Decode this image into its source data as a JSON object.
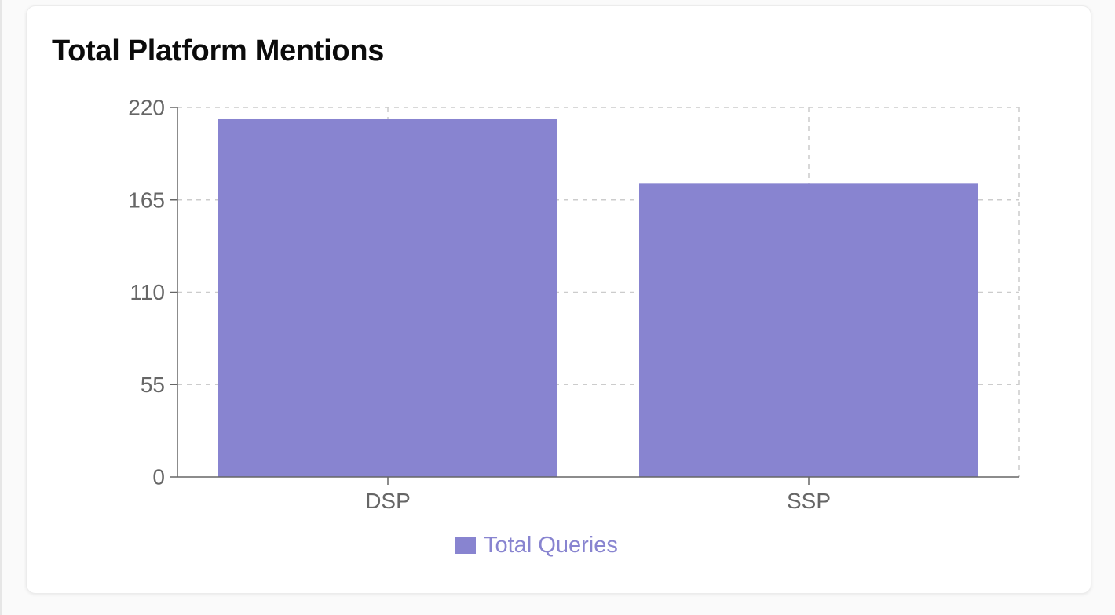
{
  "card": {
    "title": "Total Platform Mentions"
  },
  "colors": {
    "bar": "#8884d0",
    "grid": "#cccccc",
    "axis": "#666666"
  },
  "chart_data": {
    "type": "bar",
    "title": "Total Platform Mentions",
    "categories": [
      "DSP",
      "SSP"
    ],
    "series": [
      {
        "name": "Total Queries",
        "values": [
          213,
          175
        ]
      }
    ],
    "ylim": [
      0,
      220
    ],
    "yticks": [
      0,
      55,
      110,
      165,
      220
    ],
    "xlabel": "",
    "ylabel": "",
    "grid": true,
    "legend": "bottom-center"
  }
}
